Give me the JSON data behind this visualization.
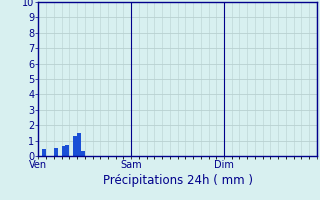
{
  "title": "Précipitations 24h ( mm )",
  "ylim": [
    0,
    10
  ],
  "yticks": [
    0,
    1,
    2,
    3,
    4,
    5,
    6,
    7,
    8,
    9,
    10
  ],
  "background_color": "#d8f0f0",
  "bar_color": "#1a4fd6",
  "grid_color": "#b8d0d0",
  "axis_color": "#00008b",
  "bar_values": [
    0,
    0.45,
    0,
    0,
    0.55,
    0,
    0.65,
    0.7,
    0,
    1.3,
    1.5,
    0.3,
    0,
    0,
    0,
    0,
    0,
    0,
    0,
    0,
    0,
    0,
    0,
    0,
    0,
    0,
    0,
    0,
    0,
    0,
    0,
    0,
    0,
    0,
    0,
    0,
    0,
    0,
    0,
    0,
    0,
    0,
    0,
    0,
    0,
    0,
    0,
    0,
    0,
    0,
    0,
    0,
    0,
    0,
    0,
    0,
    0,
    0,
    0,
    0,
    0,
    0,
    0,
    0,
    0,
    0,
    0,
    0,
    0,
    0,
    0,
    0
  ],
  "num_bars": 72,
  "xtick_positions": [
    0,
    24,
    48,
    72
  ],
  "xtick_labels": [
    "Ven",
    "Sam",
    "Dim",
    ""
  ],
  "title_fontsize": 8.5,
  "tick_fontsize": 7,
  "figsize": [
    3.2,
    2.0
  ],
  "dpi": 100
}
